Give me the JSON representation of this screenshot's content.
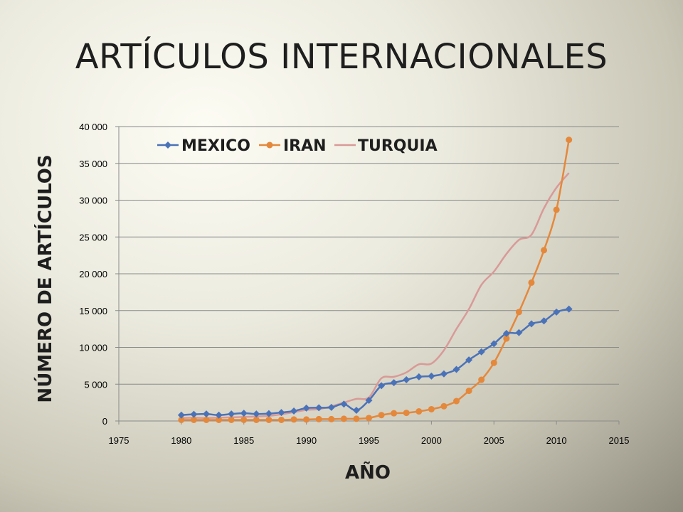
{
  "slide": {
    "title": "ARTÍCULOS INTERNACIONALES"
  },
  "chart_data": {
    "type": "line",
    "title": "",
    "xlabel": "AÑO",
    "ylabel": "NÚMERO DE ARTÍCULOS",
    "xlim": [
      1975,
      2015
    ],
    "ylim": [
      0,
      40000
    ],
    "x_ticks": [
      1975,
      1980,
      1985,
      1990,
      1995,
      2000,
      2005,
      2010,
      2015
    ],
    "x_tick_labels": [
      "1975",
      "1980",
      "1985",
      "1990",
      "1995",
      "2000",
      "2005",
      "2010",
      "2015"
    ],
    "y_ticks": [
      0,
      5000,
      10000,
      15000,
      20000,
      25000,
      30000,
      35000,
      40000
    ],
    "y_tick_labels": [
      "0",
      "5 000",
      "10 000",
      "15 000",
      "20 000",
      "25 000",
      "30 000",
      "35 000",
      "40 000"
    ],
    "grid": true,
    "legend_position": "top",
    "x": [
      1980,
      1981,
      1982,
      1983,
      1984,
      1985,
      1986,
      1987,
      1988,
      1989,
      1990,
      1991,
      1992,
      1993,
      1994,
      1995,
      1996,
      1997,
      1998,
      1999,
      2000,
      2001,
      2002,
      2003,
      2004,
      2005,
      2006,
      2007,
      2008,
      2009,
      2010,
      2011
    ],
    "series": [
      {
        "name": "MEXICO",
        "color": "#4a72b8",
        "marker": "diamond",
        "values": [
          800,
          900,
          950,
          800,
          950,
          1050,
          950,
          1000,
          1150,
          1350,
          1750,
          1800,
          1850,
          2300,
          1450,
          2800,
          4800,
          5200,
          5600,
          6000,
          6100,
          6400,
          7000,
          8300,
          9400,
          10500,
          11900,
          12000,
          13200,
          13600,
          14800,
          15200
        ]
      },
      {
        "name": "IRAN",
        "color": "#e4883c",
        "marker": "circle",
        "values": [
          150,
          150,
          150,
          150,
          150,
          150,
          150,
          150,
          150,
          200,
          200,
          250,
          250,
          300,
          300,
          400,
          800,
          1050,
          1100,
          1300,
          1600,
          2000,
          2700,
          4100,
          5600,
          7900,
          11200,
          14800,
          18800,
          23200,
          28700,
          38200
        ]
      },
      {
        "name": "TURQUIA",
        "color": "#d89a98",
        "marker": "none",
        "values": [
          400,
          450,
          400,
          450,
          500,
          550,
          600,
          700,
          900,
          1200,
          1500,
          1600,
          2000,
          2500,
          3000,
          3200,
          5800,
          6000,
          6600,
          7700,
          7800,
          9600,
          12500,
          15200,
          18500,
          20300,
          22700,
          24600,
          25300,
          28900,
          31700,
          33700
        ]
      }
    ]
  }
}
